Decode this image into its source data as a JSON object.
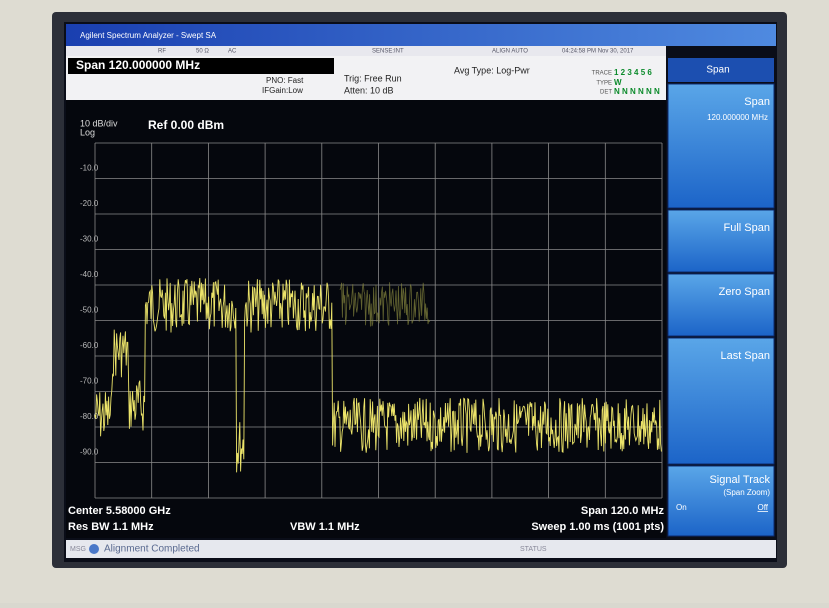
{
  "window": {
    "title": "Agilent Spectrum Analyzer - Swept SA"
  },
  "status_row": {
    "rf": "RF",
    "impedance": "50 Ω",
    "coupling": "AC",
    "sense": "SENSE:INT",
    "align": "ALIGN AUTO",
    "clock": "04:24:58 PM Nov 30, 2017"
  },
  "settings": {
    "span": "Span 120.000000 MHz",
    "pno": "PNO: Fast",
    "ifgain": "IFGain:Low",
    "trig": "Trig: Free Run",
    "atten": "Atten: 10 dB",
    "avg_type": "Avg Type: Log-Pwr",
    "trace_label": "TRACE",
    "trace_digits": "1 2 3 4 5 6",
    "type_label": "TYPE",
    "type_value": "W",
    "det_label": "DET",
    "det_value": "N N N N N N"
  },
  "plot": {
    "scale": "10 dB/div",
    "scale_type": "Log",
    "ref": "Ref 0.00 dBm",
    "y_labels": [
      "-10.0",
      "-20.0",
      "-30.0",
      "-40.0",
      "-50.0",
      "-60.0",
      "-70.0",
      "-80.0",
      "-90.0"
    ]
  },
  "footer": {
    "center": "Center 5.58000 GHz",
    "span": "Span 120.0 MHz",
    "res_bw": "Res BW 1.1 MHz",
    "vbw": "VBW 1.1 MHz",
    "sweep": "Sweep  1.00 ms (1001 pts)"
  },
  "softkeys": {
    "header": "Span",
    "keys": [
      {
        "label": "Span",
        "value": "120.000000 MHz"
      },
      {
        "label": "Full Span"
      },
      {
        "label": "Zero Span"
      },
      {
        "label": "Last Span"
      },
      {
        "label": "Signal Track",
        "sub": "(Span Zoom)",
        "on": "On",
        "off": "Off"
      }
    ]
  },
  "message_bar": {
    "msg": "MSG",
    "text": "Alignment Completed",
    "status": "STATUS"
  }
}
